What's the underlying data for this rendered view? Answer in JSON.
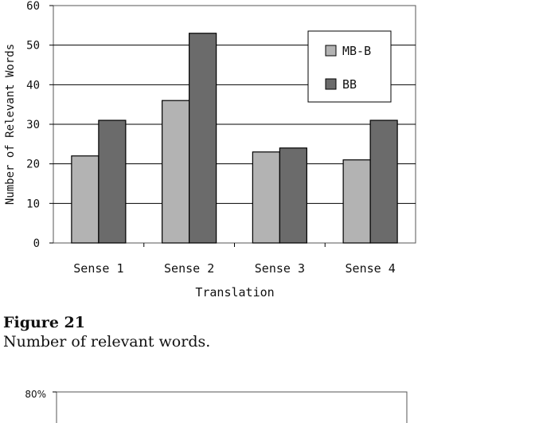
{
  "chart_data": [
    {
      "type": "bar",
      "categories": [
        "Sense 1",
        "Sense 2",
        "Sense 3",
        "Sense 4"
      ],
      "series": [
        {
          "name": "MB-B",
          "values": [
            22,
            36,
            23,
            21
          ]
        },
        {
          "name": "BB",
          "values": [
            31,
            53,
            24,
            31
          ]
        }
      ],
      "xlabel": "Translation",
      "ylabel": "Number of Relevant Words",
      "ylim": [
        0,
        60
      ],
      "yticks": [
        0,
        10,
        20,
        30,
        40,
        50,
        60
      ],
      "grid": true,
      "legend": "top-right",
      "colors": [
        "#b3b3b3",
        "#6b6b6b"
      ]
    },
    {
      "type": "bar",
      "yticks": [
        "80%"
      ]
    }
  ],
  "caption": {
    "label": "Figure 21",
    "text": "Number of relevant words."
  }
}
